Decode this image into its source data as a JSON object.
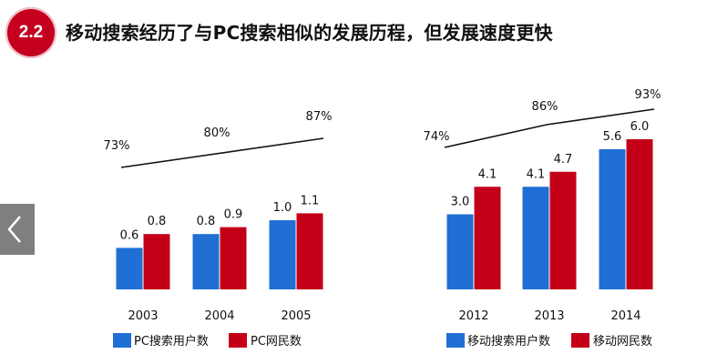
{
  "header": {
    "section_number": "2.2",
    "title": "移动搜索经历了与PC搜索相似的发展历程，但发展速度更快"
  },
  "colors": {
    "blue": "#1f6fd4",
    "red": "#c40018",
    "line": "#111111"
  },
  "chart_data": [
    {
      "type": "bar",
      "categories": [
        "2003",
        "2004",
        "2005"
      ],
      "series": [
        {
          "name": "PC搜索用户数",
          "values": [
            0.6,
            0.8,
            1.0
          ],
          "labels": [
            "0.6",
            "0.8",
            "1.0"
          ]
        },
        {
          "name": "PC网民数",
          "values": [
            0.8,
            0.9,
            1.1
          ],
          "labels": [
            "0.8",
            "0.9",
            "1.1"
          ]
        }
      ],
      "ratio": {
        "values": [
          73,
          80,
          87
        ],
        "labels": [
          "73%",
          "80%",
          "87%"
        ]
      }
    },
    {
      "type": "bar",
      "categories": [
        "2012",
        "2013",
        "2014"
      ],
      "series": [
        {
          "name": "移动搜索用户数",
          "values": [
            3.0,
            4.1,
            5.6
          ],
          "labels": [
            "3.0",
            "4.1",
            "5.6"
          ]
        },
        {
          "name": "移动网民数",
          "values": [
            4.1,
            4.7,
            6.0
          ],
          "labels": [
            "4.1",
            "4.7",
            "6.0"
          ]
        }
      ],
      "ratio": {
        "values": [
          74,
          86,
          93
        ],
        "labels": [
          "74%",
          "86%",
          "93%"
        ]
      }
    }
  ]
}
